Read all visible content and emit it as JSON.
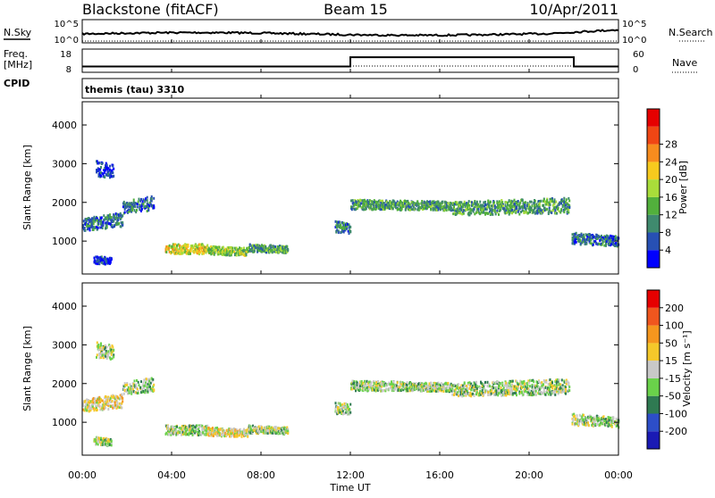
{
  "header": {
    "station": "Blackstone (fitACF)",
    "beam": "Beam 15",
    "date": "10/Apr/2011"
  },
  "panels": {
    "nsky_label": "N.Sky",
    "nsearch_label": "N.Search",
    "noise_ticks": [
      "10^5",
      "10^0"
    ],
    "freq_label": "Freq.",
    "freq_unit": "[MHz]",
    "freq_ticks": [
      "18",
      "8"
    ],
    "nave_label": "Nave",
    "nave_ticks": [
      "60",
      "0"
    ],
    "cpid_label": "CPID",
    "cpid_value": "themis (tau) 3310"
  },
  "colors": {
    "power": [
      "#0000ff",
      "#2750b4",
      "#3f8a6e",
      "#52b03c",
      "#a9dd3a",
      "#f7ca1e",
      "#f78c1e",
      "#f04614",
      "#e60000"
    ],
    "velocity": [
      "#1a1ab4",
      "#2d4ec8",
      "#2f7a52",
      "#6ad24a",
      "#c8c8c8",
      "#f5c82a",
      "#f5961e",
      "#f0561e",
      "#e60000"
    ]
  },
  "chart_data": [
    {
      "type": "heatmap",
      "name": "power",
      "ylabel": "Slant Range [km]",
      "yticks": [
        1000,
        2000,
        3000,
        4000
      ],
      "ylim": [
        150,
        4600
      ],
      "xlim": [
        0,
        24
      ],
      "colorbar_label": "Power [dB]",
      "colorbar_ticks": [
        "4",
        "8",
        "12",
        "16",
        "20",
        "24",
        "28"
      ],
      "colorbar_range": [
        0,
        32
      ],
      "bands": [
        {
          "t0": 0.0,
          "t1": 1.8,
          "r0": 1300,
          "r1": 1600,
          "r_end": 1800,
          "level": 2
        },
        {
          "t0": 1.8,
          "t1": 3.2,
          "r0": 1750,
          "r1": 2050,
          "r_end": 2200,
          "level": 2
        },
        {
          "t0": 0.6,
          "t1": 1.4,
          "r0": 2700,
          "r1": 3100,
          "r_end": 3000,
          "level": 1
        },
        {
          "t0": 0.5,
          "t1": 1.3,
          "r0": 450,
          "r1": 650,
          "r_end": 600,
          "level": 1
        },
        {
          "t0": 3.7,
          "t1": 5.6,
          "r0": 700,
          "r1": 950,
          "r_end": 950,
          "level": 5
        },
        {
          "t0": 5.6,
          "t1": 7.4,
          "r0": 680,
          "r1": 900,
          "r_end": 850,
          "level": 4
        },
        {
          "t0": 7.4,
          "t1": 9.2,
          "r0": 750,
          "r1": 950,
          "r_end": 900,
          "level": 3
        },
        {
          "t0": 11.3,
          "t1": 12.0,
          "r0": 1250,
          "r1": 1550,
          "r_end": 1500,
          "level": 2
        },
        {
          "t0": 12.0,
          "t1": 16.5,
          "r0": 1850,
          "r1": 2100,
          "r_end": 2050,
          "level": 3
        },
        {
          "t0": 16.5,
          "t1": 21.8,
          "r0": 1700,
          "r1": 2050,
          "r_end": 2150,
          "level": 3
        },
        {
          "t0": 21.9,
          "t1": 24.0,
          "r0": 950,
          "r1": 1250,
          "r_end": 1150,
          "level": 2
        }
      ]
    },
    {
      "type": "heatmap",
      "name": "velocity",
      "ylabel": "Slant Range [km]",
      "yticks": [
        1000,
        2000,
        3000,
        4000
      ],
      "ylim": [
        150,
        4600
      ],
      "xlim": [
        0,
        24
      ],
      "colorbar_label": "Velocity [m s⁻¹]",
      "colorbar_ticks": [
        "200",
        "100",
        "50",
        "15",
        "-15",
        "-50",
        "-100",
        "-200"
      ],
      "colorbar_range": [
        -250,
        250
      ],
      "bands": [
        {
          "t0": 0.0,
          "t1": 1.8,
          "r0": 1300,
          "r1": 1600,
          "r_end": 1800,
          "level": 5
        },
        {
          "t0": 1.8,
          "t1": 3.2,
          "r0": 1750,
          "r1": 2050,
          "r_end": 2200,
          "level": 4
        },
        {
          "t0": 0.6,
          "t1": 1.4,
          "r0": 2700,
          "r1": 3100,
          "r_end": 3000,
          "level": 4
        },
        {
          "t0": 0.5,
          "t1": 1.3,
          "r0": 450,
          "r1": 650,
          "r_end": 600,
          "level": 4
        },
        {
          "t0": 3.7,
          "t1": 5.6,
          "r0": 700,
          "r1": 950,
          "r_end": 950,
          "level": 4
        },
        {
          "t0": 5.6,
          "t1": 7.4,
          "r0": 680,
          "r1": 900,
          "r_end": 850,
          "level": 5
        },
        {
          "t0": 7.4,
          "t1": 9.2,
          "r0": 750,
          "r1": 950,
          "r_end": 900,
          "level": 4
        },
        {
          "t0": 11.3,
          "t1": 12.0,
          "r0": 1250,
          "r1": 1550,
          "r_end": 1500,
          "level": 4
        },
        {
          "t0": 12.0,
          "t1": 16.5,
          "r0": 1850,
          "r1": 2100,
          "r_end": 2050,
          "level": 4
        },
        {
          "t0": 16.5,
          "t1": 21.8,
          "r0": 1700,
          "r1": 2050,
          "r_end": 2150,
          "level": 4
        },
        {
          "t0": 21.9,
          "t1": 24.0,
          "r0": 950,
          "r1": 1250,
          "r_end": 1150,
          "level": 4
        }
      ]
    }
  ],
  "time_axis": {
    "xlabel": "Time UT",
    "ticks": [
      "00:00",
      "04:00",
      "08:00",
      "12:00",
      "16:00",
      "20:00",
      "00:00"
    ],
    "tick_hours": [
      0,
      4,
      8,
      12,
      16,
      20,
      24
    ]
  },
  "frequency_trace": [
    {
      "t0": 0,
      "t1": 12,
      "value": 10.5
    },
    {
      "t0": 12,
      "t1": 22,
      "value": 14.5
    },
    {
      "t0": 22,
      "t1": 24,
      "value": 10.5
    }
  ]
}
